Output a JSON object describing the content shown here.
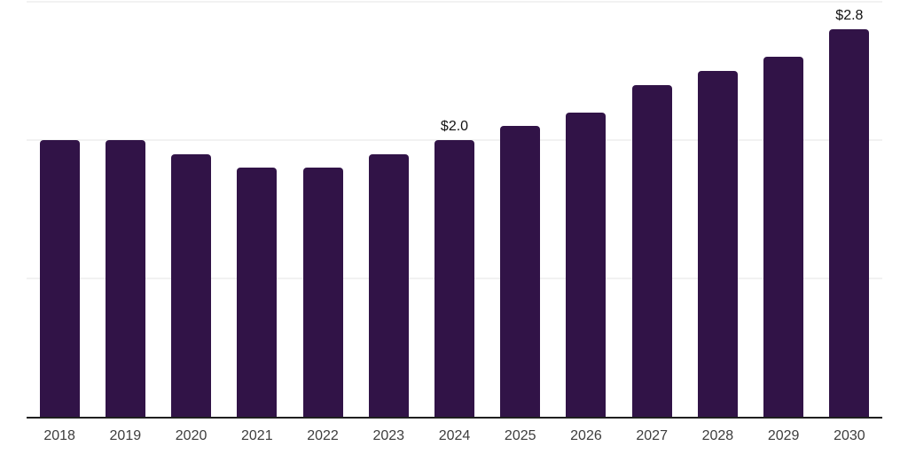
{
  "chart_data": {
    "type": "bar",
    "title": "",
    "xlabel": "",
    "ylabel": "",
    "categories": [
      "2018",
      "2019",
      "2020",
      "2021",
      "2022",
      "2023",
      "2024",
      "2025",
      "2026",
      "2027",
      "2028",
      "2029",
      "2030"
    ],
    "values": [
      2.0,
      2.0,
      1.9,
      1.8,
      1.8,
      1.9,
      2.0,
      2.1,
      2.2,
      2.4,
      2.5,
      2.6,
      2.8
    ],
    "annotations": [
      {
        "category": "2024",
        "text": "$2.0"
      },
      {
        "category": "2030",
        "text": "$2.8"
      }
    ],
    "ylim": [
      0,
      3.0
    ],
    "gridline_values": [
      1.0,
      2.0,
      3.0
    ],
    "grid": "horizontal-only",
    "legend_position": "none",
    "y_axis_labels_visible": false,
    "colors": {
      "bar": "#311347",
      "gridline": "#f2f2f2",
      "axis_line": "#1f1f1f",
      "tick_label": "#3d3d3d",
      "value_label": "#111111",
      "background": "#ffffff"
    }
  }
}
